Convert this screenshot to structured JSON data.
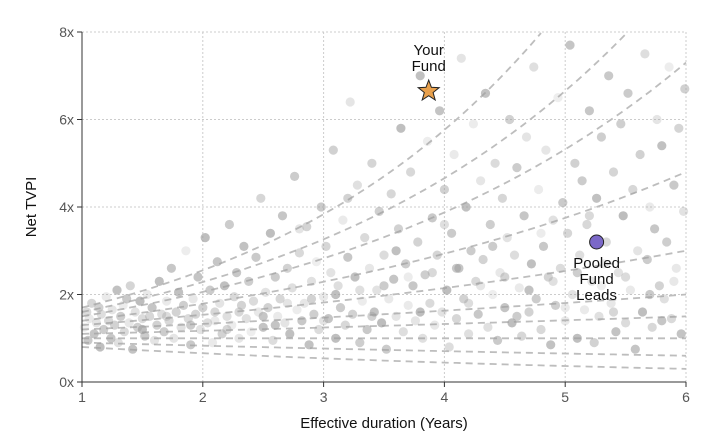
{
  "chart_data": {
    "type": "scatter",
    "title": "",
    "xlabel": "Effective duration (Years)",
    "ylabel": "Net TVPI",
    "xlim": [
      1,
      6
    ],
    "ylim": [
      0,
      8
    ],
    "x_ticks": [
      {
        "value": 1,
        "label": "1"
      },
      {
        "value": 2,
        "label": "2"
      },
      {
        "value": 3,
        "label": "3"
      },
      {
        "value": 4,
        "label": "4"
      },
      {
        "value": 5,
        "label": "5"
      },
      {
        "value": 6,
        "label": "6"
      }
    ],
    "y_ticks": [
      {
        "value": 0,
        "label": "0x"
      },
      {
        "value": 2,
        "label": "2x"
      },
      {
        "value": 4,
        "label": "4x"
      },
      {
        "value": 6,
        "label": "6x"
      },
      {
        "value": 8,
        "label": "8x"
      }
    ],
    "grid": true,
    "legend": "none",
    "colors": {
      "background_points": "#9e9e9e",
      "reference_lines": "#bdbdbd",
      "your_fund": "#e8a04c",
      "pooled_leads": "#7b68c8",
      "grid": "#cccccc"
    },
    "reference_curves": {
      "style": "dashed",
      "start_tvpi": [
        1.7,
        1.6,
        1.5,
        1.4,
        1.3,
        1.2,
        1.1,
        1.0,
        0.9,
        0.8
      ],
      "end_tvpi_at_6y": [
        13.0,
        9.5,
        7.3,
        4.8,
        3.0,
        2.0,
        1.5,
        1.0,
        0.6,
        0.3
      ]
    },
    "scatter_points": [
      [
        1.02,
        1.25
      ],
      [
        1.04,
        1.6
      ],
      [
        1.05,
        0.95
      ],
      [
        1.06,
        1.45
      ],
      [
        1.08,
        1.8
      ],
      [
        1.1,
        1.1
      ],
      [
        1.12,
        1.35
      ],
      [
        1.14,
        1.7
      ],
      [
        1.15,
        0.8
      ],
      [
        1.16,
        1.55
      ],
      [
        1.18,
        1.2
      ],
      [
        1.2,
        1.95
      ],
      [
        1.22,
        1.4
      ],
      [
        1.24,
        1.0
      ],
      [
        1.25,
        1.65
      ],
      [
        1.27,
        1.3
      ],
      [
        1.29,
        2.1
      ],
      [
        1.3,
        0.9
      ],
      [
        1.32,
        1.5
      ],
      [
        1.34,
        1.75
      ],
      [
        1.35,
        1.15
      ],
      [
        1.37,
        1.9
      ],
      [
        1.39,
        1.35
      ],
      [
        1.4,
        2.2
      ],
      [
        1.42,
        0.75
      ],
      [
        1.44,
        1.6
      ],
      [
        1.46,
        1.25
      ],
      [
        1.48,
        1.85
      ],
      [
        1.5,
        1.45
      ],
      [
        1.52,
        1.05
      ],
      [
        1.54,
        2.0
      ],
      [
        1.56,
        1.5
      ],
      [
        1.58,
        1.7
      ],
      [
        1.6,
        0.95
      ],
      [
        1.62,
        1.3
      ],
      [
        1.64,
        2.3
      ],
      [
        1.66,
        1.55
      ],
      [
        1.68,
        1.15
      ],
      [
        1.7,
        1.85
      ],
      [
        1.72,
        1.4
      ],
      [
        1.74,
        2.6
      ],
      [
        1.76,
        1.0
      ],
      [
        1.78,
        1.6
      ],
      [
        1.8,
        2.05
      ],
      [
        1.82,
        1.25
      ],
      [
        1.84,
        1.75
      ],
      [
        1.86,
        3.0
      ],
      [
        1.88,
        1.45
      ],
      [
        1.9,
        0.85
      ],
      [
        1.92,
        1.9
      ],
      [
        1.94,
        1.55
      ],
      [
        1.96,
        2.4
      ],
      [
        1.98,
        1.2
      ],
      [
        2.0,
        1.7
      ],
      [
        2.02,
        3.3
      ],
      [
        2.04,
        1.35
      ],
      [
        2.06,
        2.1
      ],
      [
        2.08,
        0.9
      ],
      [
        2.1,
        1.6
      ],
      [
        2.12,
        2.75
      ],
      [
        2.14,
        1.8
      ],
      [
        2.16,
        1.1
      ],
      [
        2.18,
        2.2
      ],
      [
        2.2,
        1.5
      ],
      [
        2.22,
        3.6
      ],
      [
        2.24,
        1.3
      ],
      [
        2.26,
        1.95
      ],
      [
        2.28,
        2.5
      ],
      [
        2.3,
        1.0
      ],
      [
        2.32,
        1.75
      ],
      [
        2.34,
        3.1
      ],
      [
        2.36,
        1.45
      ],
      [
        2.38,
        2.3
      ],
      [
        2.4,
        1.15
      ],
      [
        2.42,
        1.85
      ],
      [
        2.44,
        2.85
      ],
      [
        2.46,
        1.6
      ],
      [
        2.48,
        4.2
      ],
      [
        2.5,
        1.25
      ],
      [
        2.52,
        2.05
      ],
      [
        2.54,
        1.7
      ],
      [
        2.56,
        3.4
      ],
      [
        2.58,
        0.95
      ],
      [
        2.6,
        2.4
      ],
      [
        2.62,
        1.5
      ],
      [
        2.64,
        1.9
      ],
      [
        2.66,
        3.8
      ],
      [
        2.68,
        1.35
      ],
      [
        2.7,
        2.6
      ],
      [
        2.72,
        1.1
      ],
      [
        2.74,
        2.15
      ],
      [
        2.76,
        4.7
      ],
      [
        2.78,
        1.65
      ],
      [
        2.8,
        2.95
      ],
      [
        2.82,
        1.4
      ],
      [
        2.84,
        1.8
      ],
      [
        2.86,
        3.55
      ],
      [
        2.88,
        0.85
      ],
      [
        2.9,
        2.3
      ],
      [
        2.92,
        1.55
      ],
      [
        2.94,
        2.75
      ],
      [
        2.96,
        1.2
      ],
      [
        2.98,
        4.0
      ],
      [
        3.0,
        1.95
      ],
      [
        3.02,
        3.1
      ],
      [
        3.04,
        1.45
      ],
      [
        3.06,
        2.5
      ],
      [
        3.08,
        5.3
      ],
      [
        3.1,
        1.0
      ],
      [
        3.12,
        2.2
      ],
      [
        3.14,
        1.7
      ],
      [
        3.16,
        3.7
      ],
      [
        3.18,
        1.3
      ],
      [
        3.2,
        2.85
      ],
      [
        3.22,
        6.4
      ],
      [
        3.24,
        1.55
      ],
      [
        3.26,
        2.4
      ],
      [
        3.28,
        4.5
      ],
      [
        3.3,
        0.9
      ],
      [
        3.32,
        1.85
      ],
      [
        3.34,
        3.3
      ],
      [
        3.36,
        1.2
      ],
      [
        3.38,
        2.6
      ],
      [
        3.4,
        5.0
      ],
      [
        3.42,
        1.6
      ],
      [
        3.44,
        2.1
      ],
      [
        3.46,
        3.9
      ],
      [
        3.48,
        1.35
      ],
      [
        3.5,
        2.9
      ],
      [
        3.52,
        0.75
      ],
      [
        3.54,
        1.9
      ],
      [
        3.56,
        4.3
      ],
      [
        3.58,
        2.35
      ],
      [
        3.6,
        1.5
      ],
      [
        3.62,
        3.5
      ],
      [
        3.64,
        5.8
      ],
      [
        3.66,
        1.15
      ],
      [
        3.68,
        2.7
      ],
      [
        3.7,
        1.75
      ],
      [
        3.72,
        4.8
      ],
      [
        3.74,
        2.2
      ],
      [
        3.76,
        1.4
      ],
      [
        3.78,
        3.2
      ],
      [
        3.8,
        7.0
      ],
      [
        3.82,
        1.0
      ],
      [
        3.84,
        2.45
      ],
      [
        3.86,
        5.5
      ],
      [
        3.88,
        1.8
      ],
      [
        3.9,
        3.75
      ],
      [
        3.92,
        1.3
      ],
      [
        3.94,
        2.9
      ],
      [
        3.96,
        6.2
      ],
      [
        3.98,
        1.6
      ],
      [
        4.0,
        4.4
      ],
      [
        4.02,
        2.1
      ],
      [
        4.04,
        0.8
      ],
      [
        4.06,
        3.4
      ],
      [
        4.08,
        5.2
      ],
      [
        4.1,
        1.45
      ],
      [
        4.12,
        2.6
      ],
      [
        4.14,
        7.4
      ],
      [
        4.16,
        1.9
      ],
      [
        4.18,
        4.0
      ],
      [
        4.2,
        1.1
      ],
      [
        4.22,
        3.0
      ],
      [
        4.24,
        5.9
      ],
      [
        4.26,
        2.3
      ],
      [
        4.28,
        1.55
      ],
      [
        4.3,
        4.6
      ],
      [
        4.32,
        2.8
      ],
      [
        4.34,
        6.6
      ],
      [
        4.36,
        1.25
      ],
      [
        4.38,
        3.6
      ],
      [
        4.4,
        2.0
      ],
      [
        4.42,
        5.0
      ],
      [
        4.44,
        0.95
      ],
      [
        4.46,
        2.5
      ],
      [
        4.48,
        4.2
      ],
      [
        4.5,
        1.7
      ],
      [
        4.52,
        3.3
      ],
      [
        4.54,
        6.0
      ],
      [
        4.56,
        1.35
      ],
      [
        4.58,
        2.9
      ],
      [
        4.6,
        4.9
      ],
      [
        4.62,
        2.15
      ],
      [
        4.64,
        1.05
      ],
      [
        4.66,
        3.8
      ],
      [
        4.68,
        5.6
      ],
      [
        4.7,
        1.6
      ],
      [
        4.72,
        2.7
      ],
      [
        4.74,
        7.2
      ],
      [
        4.76,
        1.9
      ],
      [
        4.78,
        4.4
      ],
      [
        4.8,
        1.2
      ],
      [
        4.82,
        3.1
      ],
      [
        4.84,
        5.3
      ],
      [
        4.86,
        2.4
      ],
      [
        4.88,
        0.85
      ],
      [
        4.9,
        3.7
      ],
      [
        4.92,
        1.75
      ],
      [
        4.94,
        6.5
      ],
      [
        4.96,
        2.6
      ],
      [
        4.98,
        4.1
      ],
      [
        5.0,
        1.4
      ],
      [
        5.02,
        3.4
      ],
      [
        5.04,
        7.7
      ],
      [
        5.06,
        2.0
      ],
      [
        5.08,
        5.0
      ],
      [
        5.1,
        1.0
      ],
      [
        5.12,
        2.9
      ],
      [
        5.14,
        4.6
      ],
      [
        5.16,
        1.65
      ],
      [
        5.18,
        3.6
      ],
      [
        5.2,
        6.2
      ],
      [
        5.22,
        2.3
      ],
      [
        5.24,
        0.9
      ],
      [
        5.26,
        4.2
      ],
      [
        5.28,
        1.5
      ],
      [
        5.3,
        5.6
      ],
      [
        5.32,
        2.7
      ],
      [
        5.34,
        3.2
      ],
      [
        5.36,
        7.0
      ],
      [
        5.38,
        1.8
      ],
      [
        5.4,
        4.8
      ],
      [
        5.42,
        1.15
      ],
      [
        5.44,
        2.5
      ],
      [
        5.46,
        5.9
      ],
      [
        5.48,
        3.8
      ],
      [
        5.5,
        1.35
      ],
      [
        5.52,
        6.6
      ],
      [
        5.54,
        2.1
      ],
      [
        5.56,
        4.4
      ],
      [
        5.58,
        0.75
      ],
      [
        5.6,
        3.0
      ],
      [
        5.62,
        5.2
      ],
      [
        5.64,
        1.6
      ],
      [
        5.66,
        7.5
      ],
      [
        5.68,
        2.8
      ],
      [
        5.7,
        4.0
      ],
      [
        5.72,
        1.25
      ],
      [
        5.74,
        3.5
      ],
      [
        5.76,
        6.0
      ],
      [
        5.78,
        2.2
      ],
      [
        5.8,
        5.4
      ],
      [
        5.82,
        1.9
      ],
      [
        5.84,
        3.2
      ],
      [
        5.86,
        7.2
      ],
      [
        5.88,
        1.45
      ],
      [
        5.9,
        4.5
      ],
      [
        5.92,
        2.6
      ],
      [
        5.94,
        5.8
      ],
      [
        5.96,
        1.1
      ],
      [
        5.98,
        3.9
      ],
      [
        5.99,
        6.7
      ],
      [
        1.5,
        1.2
      ],
      [
        1.7,
        1.5
      ],
      [
        1.9,
        1.3
      ],
      [
        2.1,
        1.4
      ],
      [
        2.3,
        1.6
      ],
      [
        2.5,
        1.5
      ],
      [
        2.7,
        1.8
      ],
      [
        2.9,
        1.9
      ],
      [
        3.1,
        2.0
      ],
      [
        3.3,
        2.1
      ],
      [
        3.5,
        2.2
      ],
      [
        3.7,
        2.4
      ],
      [
        3.9,
        2.5
      ],
      [
        4.1,
        2.6
      ],
      [
        4.3,
        2.2
      ],
      [
        4.5,
        2.4
      ],
      [
        4.7,
        2.1
      ],
      [
        4.9,
        2.3
      ],
      [
        5.1,
        2.5
      ],
      [
        5.3,
        2.2
      ],
      [
        5.5,
        2.4
      ],
      [
        5.7,
        2.0
      ],
      [
        5.9,
        2.3
      ],
      [
        2.2,
        1.2
      ],
      [
        2.6,
        1.3
      ],
      [
        3.0,
        1.4
      ],
      [
        3.4,
        1.5
      ],
      [
        3.8,
        1.6
      ],
      [
        4.2,
        1.8
      ],
      [
        4.6,
        1.5
      ],
      [
        5.0,
        1.7
      ],
      [
        5.4,
        1.6
      ],
      [
        5.8,
        1.4
      ],
      [
        2.8,
        3.5
      ],
      [
        3.2,
        4.2
      ],
      [
        3.6,
        3.0
      ],
      [
        4.0,
        3.6
      ],
      [
        4.4,
        3.1
      ],
      [
        4.8,
        3.4
      ],
      [
        5.2,
        3.8
      ]
    ],
    "highlights": [
      {
        "name": "Your Fund",
        "label_lines": [
          "Your",
          "Fund"
        ],
        "x": 3.87,
        "y": 6.65,
        "marker": "star",
        "color": "#e8a04c"
      },
      {
        "name": "Pooled Fund Leads",
        "label_lines": [
          "Pooled",
          "Fund",
          "Leads"
        ],
        "x": 5.26,
        "y": 3.2,
        "marker": "circle",
        "color": "#7b68c8"
      }
    ]
  }
}
